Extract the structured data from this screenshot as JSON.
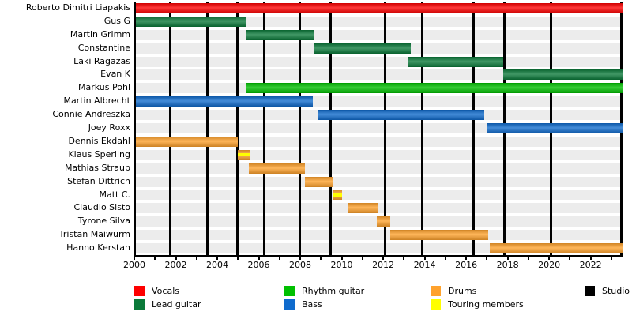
{
  "chart_data": {
    "type": "timeline",
    "x_axis": {
      "min": 2000,
      "max": 2023.5,
      "tick_step": 1,
      "label_step": 2,
      "tick_labels": [
        "2000",
        "2002",
        "2004",
        "2006",
        "2008",
        "2010",
        "2012",
        "2014",
        "2016",
        "2018",
        "2020",
        "2022"
      ]
    },
    "legend": [
      {
        "label": "Vocals",
        "color": "#fe0000"
      },
      {
        "label": "Lead guitar",
        "color": "#0b7a3a"
      },
      {
        "label": "Rhythm guitar",
        "color": "#00c000"
      },
      {
        "label": "Bass",
        "color": "#0f6bcd"
      },
      {
        "label": "Drums",
        "color": "#ffa22d"
      },
      {
        "label": "Touring members",
        "color": "#ffff00"
      },
      {
        "label": "Studio albums",
        "color": "#000000"
      }
    ],
    "members": [
      {
        "name": "Roberto Dimitri Liapakis",
        "role": "Vocals",
        "start": 2000,
        "end": 2023.5,
        "touring": false
      },
      {
        "name": "Gus G",
        "role": "Lead guitar",
        "start": 2000,
        "end": 2005.3,
        "touring": false
      },
      {
        "name": "Martin Grimm",
        "role": "Lead guitar",
        "start": 2005.3,
        "end": 2008.6,
        "touring": false
      },
      {
        "name": "Constantine",
        "role": "Lead guitar",
        "start": 2008.6,
        "end": 2013.25,
        "touring": false
      },
      {
        "name": "Laki Ragazas",
        "role": "Lead guitar",
        "start": 2013.15,
        "end": 2017.7,
        "touring": false
      },
      {
        "name": "Evan K",
        "role": "Lead guitar",
        "start": 2017.7,
        "end": 2023.5,
        "touring": false
      },
      {
        "name": "Markus Pohl",
        "role": "Rhythm guitar",
        "start": 2005.3,
        "end": 2023.5,
        "touring": false
      },
      {
        "name": "Martin Albrecht",
        "role": "Bass",
        "start": 2000,
        "end": 2008.55,
        "touring": false
      },
      {
        "name": "Connie Andreszka",
        "role": "Bass",
        "start": 2008.8,
        "end": 2016.8,
        "touring": false
      },
      {
        "name": "Joey Roxx",
        "role": "Bass",
        "start": 2016.9,
        "end": 2023.5,
        "touring": false
      },
      {
        "name": "Dennis Ekdahl",
        "role": "Drums",
        "start": 2000,
        "end": 2004.9,
        "touring": false
      },
      {
        "name": "Klaus Sperling",
        "role": "Drums",
        "start": 2004.9,
        "end": 2005.5,
        "touring": true
      },
      {
        "name": "Mathias Straub",
        "role": "Drums",
        "start": 2005.45,
        "end": 2008.15,
        "touring": false
      },
      {
        "name": "Stefan Dittrich",
        "role": "Drums",
        "start": 2008.15,
        "end": 2009.5,
        "touring": false
      },
      {
        "name": "Matt C.",
        "role": "Drums",
        "start": 2009.5,
        "end": 2009.95,
        "touring": true
      },
      {
        "name": "Claudio Sisto",
        "role": "Drums",
        "start": 2010.2,
        "end": 2011.65,
        "touring": false
      },
      {
        "name": "Tyrone Silva",
        "role": "Drums",
        "start": 2011.6,
        "end": 2012.25,
        "touring": false
      },
      {
        "name": "Tristan Maiwurm",
        "role": "Drums",
        "start": 2012.25,
        "end": 2017.0,
        "touring": false
      },
      {
        "name": "Hanno Kerstan",
        "role": "Drums",
        "start": 2017.05,
        "end": 2023.5,
        "touring": false
      }
    ],
    "studio_album_lines": [
      2001.65,
      2003.45,
      2004.9,
      2006.2,
      2007.9,
      2009.4,
      2012.0,
      2013.8,
      2016.3,
      2017.75,
      2020.0,
      2023.4
    ]
  }
}
